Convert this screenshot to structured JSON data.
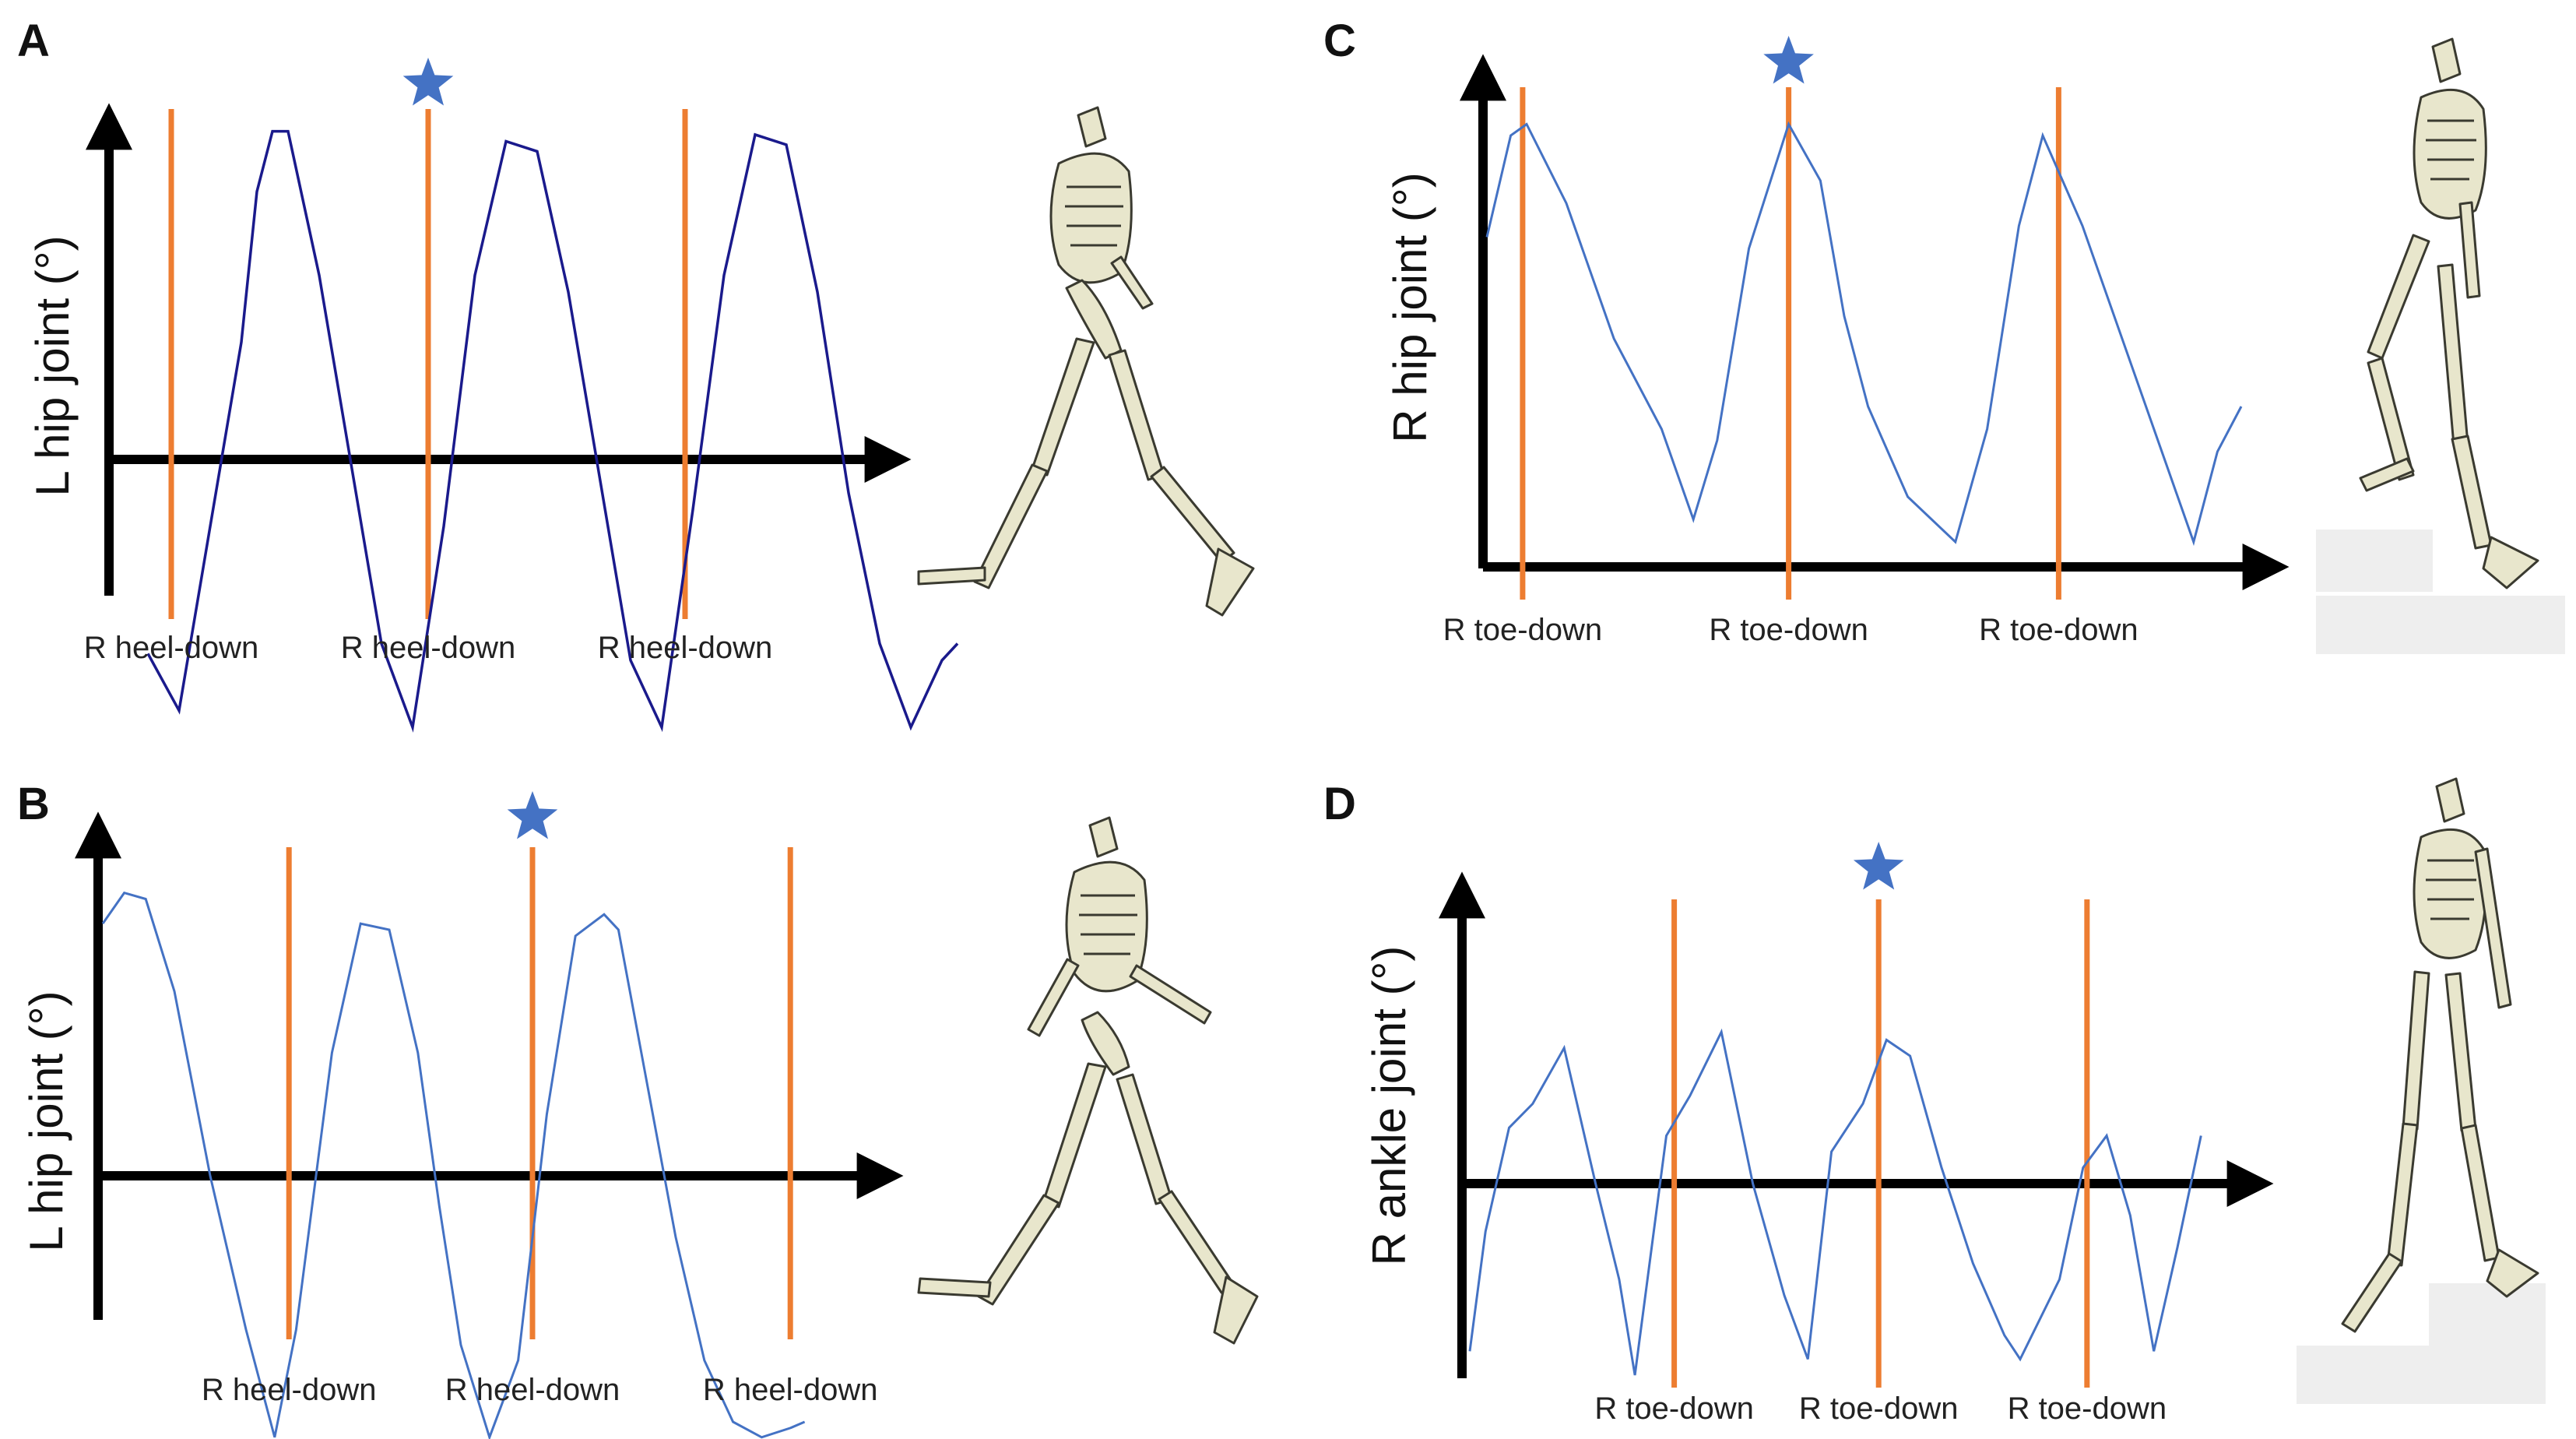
{
  "colors": {
    "marker": "#ed7d31",
    "curve_dark": "#1a1a8c",
    "curve_light": "#4472c4",
    "star": "#4472c4",
    "axis": "#000000"
  },
  "chart_data": [
    {
      "panel": "A",
      "type": "line",
      "ylabel": "L hip joint (°)",
      "xlabel": "",
      "series": [
        {
          "color": "#1a1a8c",
          "x": [
            0,
            0.4,
            0.8,
            1.2,
            1.4,
            1.6,
            1.8,
            2.2,
            2.6,
            3.0,
            3.4,
            3.8,
            4.2,
            4.6,
            5.0,
            5.4,
            5.8,
            6.2,
            6.6,
            7.0,
            7.4,
            7.8,
            8.2,
            8.6,
            9.0,
            9.4,
            9.8,
            10.2,
            10.4
          ],
          "y": [
            -0.58,
            -0.75,
            -0.2,
            0.35,
            0.8,
            0.98,
            0.98,
            0.55,
            0.0,
            -0.55,
            -0.8,
            -0.2,
            0.55,
            0.95,
            0.92,
            0.5,
            -0.05,
            -0.6,
            -0.8,
            -0.15,
            0.55,
            0.97,
            0.94,
            0.5,
            -0.1,
            -0.55,
            -0.8,
            -0.6,
            -0.55
          ]
        }
      ],
      "markers": [
        {
          "x": 0.3,
          "label": "R heel-down",
          "star": false
        },
        {
          "x": 3.6,
          "label": "R heel-down",
          "star": true
        },
        {
          "x": 6.9,
          "label": "R heel-down",
          "star": false
        }
      ]
    },
    {
      "panel": "B",
      "type": "line",
      "ylabel": "L hip joint (°)",
      "xlabel": "",
      "series": [
        {
          "color": "#4472c4",
          "x": [
            0,
            0.3,
            0.6,
            1.0,
            1.5,
            2.0,
            2.4,
            2.7,
            3.2,
            3.6,
            4.0,
            4.4,
            4.7,
            5.0,
            5.4,
            5.8,
            6.2,
            6.6,
            7.0,
            7.2,
            7.6,
            8.0,
            8.4,
            8.8,
            9.2,
            9.6,
            9.8
          ],
          "y": [
            0.82,
            0.92,
            0.9,
            0.6,
            0.0,
            -0.5,
            -0.85,
            -0.5,
            0.4,
            0.82,
            0.8,
            0.4,
            -0.1,
            -0.55,
            -0.85,
            -0.6,
            0.2,
            0.78,
            0.85,
            0.8,
            0.3,
            -0.2,
            -0.6,
            -0.8,
            -0.85,
            -0.82,
            -0.8
          ]
        }
      ],
      "markers": [
        {
          "x": 2.6,
          "label": "R heel-down",
          "star": false
        },
        {
          "x": 6.0,
          "label": "R heel-down",
          "star": true
        },
        {
          "x": 9.6,
          "label": "R heel-down",
          "star": false
        }
      ]
    },
    {
      "panel": "C",
      "type": "line",
      "ylabel": "R hip joint (°)",
      "xlabel": "",
      "series": [
        {
          "color": "#4472c4",
          "x": [
            0,
            0.3,
            0.5,
            1.0,
            1.6,
            2.2,
            2.6,
            2.9,
            3.3,
            3.8,
            4.2,
            4.5,
            4.8,
            5.3,
            5.9,
            6.3,
            6.7,
            7.0,
            7.5,
            8.1,
            8.6,
            8.9,
            9.2,
            9.5
          ],
          "y": [
            0.45,
            0.9,
            0.95,
            0.6,
            0.0,
            -0.4,
            -0.8,
            -0.45,
            0.4,
            0.95,
            0.7,
            0.1,
            -0.3,
            -0.7,
            -0.9,
            -0.4,
            0.5,
            0.9,
            0.5,
            -0.1,
            -0.6,
            -0.9,
            -0.5,
            -0.3
          ]
        }
      ],
      "markers": [
        {
          "x": 0.45,
          "label": "R toe-down",
          "star": false
        },
        {
          "x": 3.8,
          "label": "R toe-down",
          "star": true
        },
        {
          "x": 7.2,
          "label": "R toe-down",
          "star": false
        }
      ]
    },
    {
      "panel": "D",
      "type": "line",
      "ylabel": "R ankle joint (°)",
      "xlabel": "",
      "series": [
        {
          "color": "#4472c4",
          "x": [
            0,
            0.2,
            0.5,
            0.8,
            1.2,
            1.6,
            1.9,
            2.1,
            2.5,
            2.8,
            3.2,
            3.6,
            4.0,
            4.3,
            4.6,
            5.0,
            5.3,
            5.6,
            6.0,
            6.4,
            6.8,
            7.0,
            7.5,
            7.8,
            8.1,
            8.4,
            8.7,
            9.0,
            9.3
          ],
          "y": [
            -1.05,
            -0.3,
            0.35,
            0.5,
            0.85,
            0.0,
            -0.6,
            -1.2,
            0.3,
            0.55,
            0.95,
            0.0,
            -0.7,
            -1.1,
            0.2,
            0.5,
            0.9,
            0.8,
            0.1,
            -0.5,
            -0.95,
            -1.1,
            -0.6,
            0.1,
            0.3,
            -0.2,
            -1.05,
            -0.4,
            0.3
          ]
        }
      ],
      "markers": [
        {
          "x": 2.6,
          "label": "R toe-down",
          "star": false
        },
        {
          "x": 5.2,
          "label": "R toe-down",
          "star": true
        },
        {
          "x": 7.85,
          "label": "R toe-down",
          "star": false
        }
      ]
    }
  ]
}
